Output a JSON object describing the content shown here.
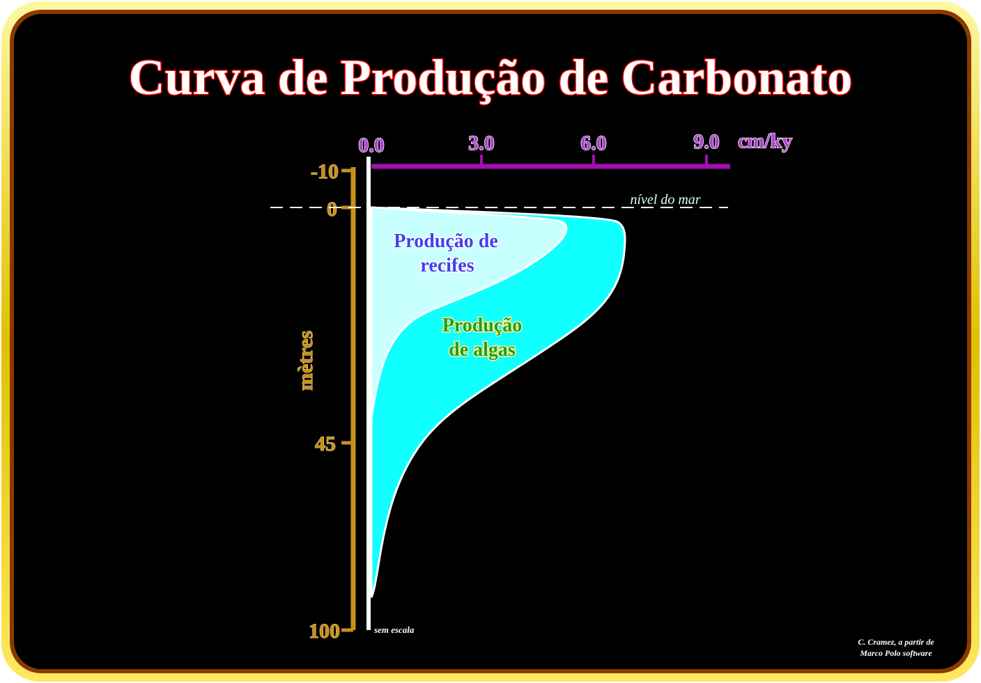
{
  "title": "Curva de Produção de Carbonato",
  "rate_axis": {
    "unit": "cm/ky",
    "ticks": [
      "0.0",
      "3.0",
      "6.0",
      "9.0"
    ]
  },
  "depth_axis": {
    "label": "mètres",
    "ticks": [
      "-10",
      "0",
      "45",
      "100"
    ],
    "note": "sem escala"
  },
  "sea_level": "nível do mar",
  "reef_label": [
    "Produção de",
    "recifes"
  ],
  "algae_label": [
    "Produção",
    "de algas"
  ],
  "credit": [
    "C. Cramez, a partir de",
    "Marco Polo software"
  ]
}
